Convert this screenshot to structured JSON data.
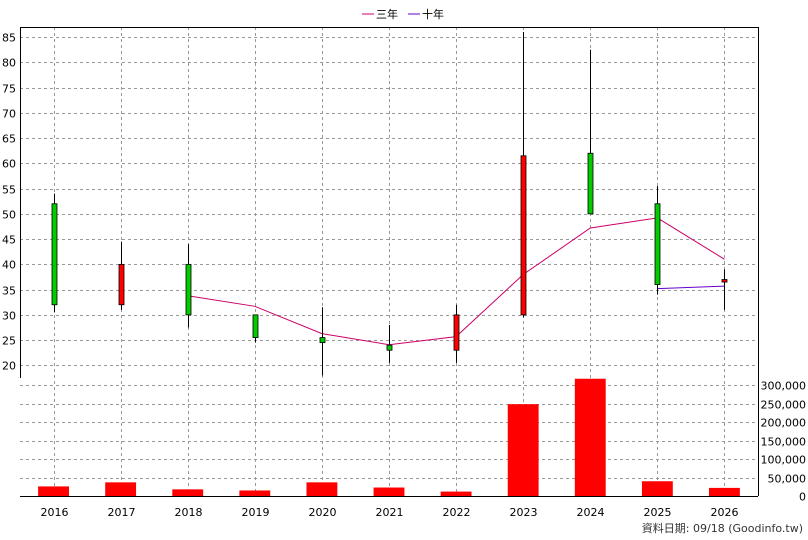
{
  "chart_data": {
    "type": "candlestick",
    "legend": [
      {
        "name": "三年",
        "color": "#cc0066"
      },
      {
        "name": "十年",
        "color": "#6600cc"
      }
    ],
    "price_axis": {
      "ylim": [
        17.5,
        87
      ],
      "ticks": [
        20,
        25,
        30,
        35,
        40,
        45,
        50,
        55,
        60,
        65,
        70,
        75,
        80,
        85
      ]
    },
    "volume_axis": {
      "ylim": [
        0,
        320000
      ],
      "ticks": [
        0,
        50000,
        100000,
        150000,
        200000,
        250000,
        300000
      ],
      "tick_labels": [
        "0",
        "50,000",
        "100,000",
        "150,000",
        "200,000",
        "250,000",
        "300,000"
      ]
    },
    "grid": true,
    "years": [
      "2016",
      "2017",
      "2018",
      "2019",
      "2020",
      "2021",
      "2022",
      "2023",
      "2024",
      "2025",
      "2026"
    ],
    "candles": [
      {
        "year": "2016",
        "open": 32,
        "close": 52,
        "high": 54,
        "low": 30.5
      },
      {
        "year": "2017",
        "open": 40,
        "close": 32,
        "high": 44.5,
        "low": 31
      },
      {
        "year": "2018",
        "open": 30,
        "close": 40,
        "high": 44,
        "low": 27.5
      },
      {
        "year": "2019",
        "open": 25.5,
        "close": 30,
        "high": 30,
        "low": 24.5
      },
      {
        "year": "2020",
        "open": 24.5,
        "close": 25.5,
        "high": 31.5,
        "low": 18
      },
      {
        "year": "2021",
        "open": 23,
        "close": 24,
        "high": 28,
        "low": 20.5
      },
      {
        "year": "2022",
        "open": 30,
        "close": 23,
        "high": 32,
        "low": 20.5
      },
      {
        "year": "2023",
        "open": 61.5,
        "close": 30,
        "high": 86,
        "low": 29.5
      },
      {
        "year": "2024",
        "open": 50,
        "close": 62,
        "high": 82.5,
        "low": 50
      },
      {
        "year": "2025",
        "open": 36,
        "close": 52,
        "high": 55.5,
        "low": 34
      },
      {
        "year": "2026",
        "open": 37,
        "close": 36.5,
        "high": 39,
        "low": 31
      }
    ],
    "ma_3y": {
      "years": [
        "2018",
        "2019",
        "2020",
        "2021",
        "2022",
        "2023",
        "2024",
        "2025",
        "2026"
      ],
      "values": [
        33.8,
        31.7,
        26.3,
        24.1,
        25.7,
        38,
        47.2,
        49.2,
        41
      ]
    },
    "ma_10y": {
      "years": [
        "2025",
        "2026"
      ],
      "values": [
        35.2,
        35.7
      ]
    },
    "volume": [
      {
        "year": "2016",
        "value": 26000
      },
      {
        "year": "2017",
        "value": 37000
      },
      {
        "year": "2018",
        "value": 18000
      },
      {
        "year": "2019",
        "value": 15000
      },
      {
        "year": "2020",
        "value": 37000
      },
      {
        "year": "2021",
        "value": 23000
      },
      {
        "year": "2022",
        "value": 12000
      },
      {
        "year": "2023",
        "value": 249000
      },
      {
        "year": "2024",
        "value": 318000
      },
      {
        "year": "2025",
        "value": 40000
      },
      {
        "year": "2026",
        "value": 22000
      }
    ],
    "colors": {
      "up": "#00cc00",
      "down": "#ff0000",
      "volume": "#ff0000",
      "wick": "#000000"
    }
  },
  "footer": "資料日期: 09/18  (Goodinfo.tw)"
}
